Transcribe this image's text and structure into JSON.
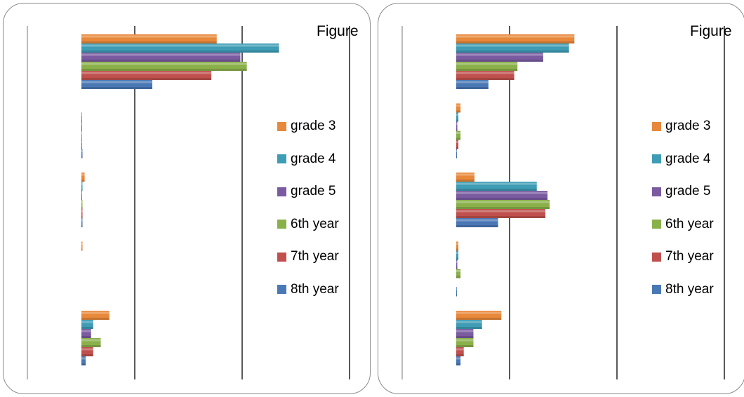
{
  "chart_data": [
    {
      "type": "bar",
      "orientation": "horizontal",
      "title": "Figure",
      "categories": [
        "",
        "",
        "",
        "",
        ""
      ],
      "series": [
        {
          "name": "grade 3",
          "color": "#E8883A",
          "values": [
            63,
            0,
            1.5,
            0.5,
            13
          ]
        },
        {
          "name": "grade 4",
          "color": "#3E9CB5",
          "values": [
            92,
            0.3,
            0.5,
            0,
            5.5
          ]
        },
        {
          "name": "grade 5",
          "color": "#7A5BA0",
          "values": [
            74,
            0.2,
            0.3,
            0,
            4.5
          ]
        },
        {
          "name": "6th year",
          "color": "#8AB04A",
          "values": [
            77,
            0.3,
            0.5,
            0,
            9
          ]
        },
        {
          "name": "7th year",
          "color": "#C0504D",
          "values": [
            60.5,
            0.2,
            0.5,
            0,
            5.5
          ]
        },
        {
          "name": "8th year",
          "color": "#4A78B5",
          "values": [
            33,
            0.5,
            0.5,
            0,
            2
          ]
        }
      ],
      "xlim": [
        -25,
        125
      ],
      "grid": true,
      "legend_position": "right"
    },
    {
      "type": "bar",
      "orientation": "horizontal",
      "title": "Figure",
      "categories": [
        "",
        "",
        "",
        "",
        ""
      ],
      "series": [
        {
          "name": "grade 3",
          "color": "#E8883A",
          "values": [
            55,
            2,
            8.5,
            1,
            21
          ]
        },
        {
          "name": "grade 4",
          "color": "#3E9CB5",
          "values": [
            52.5,
            1,
            37.5,
            1,
            12
          ]
        },
        {
          "name": "grade 5",
          "color": "#7A5BA0",
          "values": [
            40.5,
            0.5,
            42.5,
            0.5,
            8
          ]
        },
        {
          "name": "6th year",
          "color": "#8AB04A",
          "values": [
            28.5,
            2,
            43.5,
            2,
            8
          ]
        },
        {
          "name": "7th year",
          "color": "#C0504D",
          "values": [
            27,
            1,
            41.5,
            0,
            3.5
          ]
        },
        {
          "name": "8th year",
          "color": "#4A78B5",
          "values": [
            15,
            0.3,
            19.5,
            0.3,
            2
          ]
        }
      ],
      "xlim": [
        -25,
        125
      ],
      "grid": true,
      "legend_position": "right"
    }
  ]
}
